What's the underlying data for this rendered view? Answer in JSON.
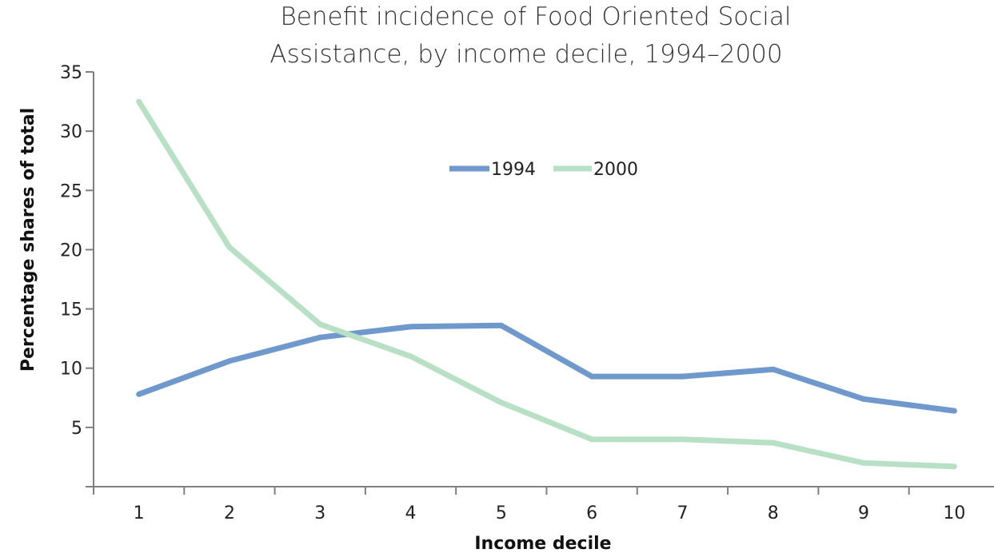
{
  "chart_data": {
    "type": "line",
    "title_lines": [
      "Benefit incidence of Food Oriented Social",
      "Assistance, by income decile,  1994–2000"
    ],
    "xlabel": "Income decile",
    "ylabel": "Percentage shares of total",
    "categories": [
      "1",
      "2",
      "3",
      "4",
      "5",
      "6",
      "7",
      "8",
      "9",
      "10"
    ],
    "y_ticks": [
      "5",
      "10",
      "15",
      "20",
      "25",
      "30",
      "35"
    ],
    "ylim": [
      0,
      35
    ],
    "grid": false,
    "legend_position": "top-center",
    "series": [
      {
        "name": "1994",
        "color": "#6f99cc",
        "values": [
          7.8,
          10.6,
          12.6,
          13.5,
          13.6,
          9.3,
          9.3,
          9.9,
          7.4,
          6.4
        ]
      },
      {
        "name": "2000",
        "color": "#b8e0c4",
        "values": [
          32.5,
          20.2,
          13.7,
          11.0,
          7.1,
          4.0,
          4.0,
          3.7,
          2.0,
          1.7
        ]
      }
    ]
  }
}
